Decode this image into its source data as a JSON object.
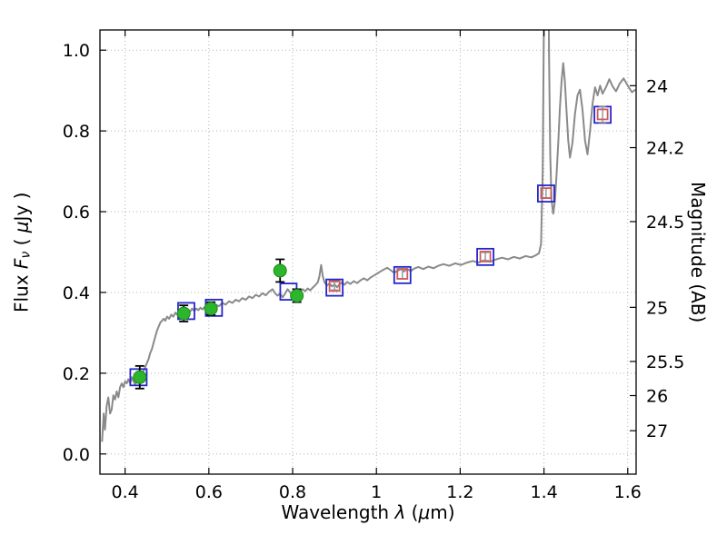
{
  "chart_data": {
    "type": "line",
    "title": "",
    "xlabel_parts": [
      "Wavelength  ",
      "λ",
      " (",
      "μ",
      "m)"
    ],
    "ylabel_parts": [
      "Flux  ",
      "F",
      "ν",
      "  ( ",
      "μ",
      "Jy )"
    ],
    "y2label": "Magnitude (AB)",
    "xlim": [
      0.34,
      1.62
    ],
    "ylim": [
      -0.05,
      1.05
    ],
    "xticks": [
      0.4,
      0.6,
      0.8,
      1.0,
      1.2,
      1.4,
      1.6
    ],
    "xtick_labels": [
      "0.4",
      "0.6",
      "0.8",
      "1",
      "1.2",
      "1.4",
      "1.6"
    ],
    "yticks": [
      0.0,
      0.2,
      0.4,
      0.6,
      0.8,
      1.0
    ],
    "ytick_labels": [
      "0.0",
      "0.2",
      "0.4",
      "0.6",
      "0.8",
      "1.0"
    ],
    "y2ticks": [
      24,
      24.2,
      24.5,
      25,
      25.5,
      26,
      27
    ],
    "y2tick_labels": [
      "24",
      "24.2",
      "24.5",
      "25",
      "25.5",
      "26",
      "27"
    ],
    "mag_zeropoint": 23.9,
    "grid": {
      "on": true,
      "color": "#b3b3b3"
    },
    "colors": {
      "frame": "#000000",
      "spectrum": "#8a8a8a",
      "observed": "#2db52d",
      "observed_edge": "#1a8a1a",
      "observed_err": "#000000",
      "synthetic_blue": "#2525cc",
      "model_red": "#cc5c5c",
      "model_err": "#999999"
    },
    "spectrum": [
      [
        0.345,
        0.03
      ],
      [
        0.349,
        0.1
      ],
      [
        0.352,
        0.06
      ],
      [
        0.356,
        0.12
      ],
      [
        0.36,
        0.14
      ],
      [
        0.364,
        0.1
      ],
      [
        0.368,
        0.11
      ],
      [
        0.372,
        0.145
      ],
      [
        0.376,
        0.135
      ],
      [
        0.38,
        0.155
      ],
      [
        0.384,
        0.14
      ],
      [
        0.388,
        0.165
      ],
      [
        0.392,
        0.175
      ],
      [
        0.396,
        0.165
      ],
      [
        0.4,
        0.18
      ],
      [
        0.404,
        0.175
      ],
      [
        0.408,
        0.185
      ],
      [
        0.412,
        0.175
      ],
      [
        0.416,
        0.19
      ],
      [
        0.42,
        0.18
      ],
      [
        0.424,
        0.172
      ],
      [
        0.428,
        0.18
      ],
      [
        0.432,
        0.19
      ],
      [
        0.436,
        0.2
      ],
      [
        0.44,
        0.19
      ],
      [
        0.444,
        0.205
      ],
      [
        0.448,
        0.215
      ],
      [
        0.452,
        0.225
      ],
      [
        0.456,
        0.235
      ],
      [
        0.46,
        0.25
      ],
      [
        0.464,
        0.26
      ],
      [
        0.468,
        0.275
      ],
      [
        0.472,
        0.29
      ],
      [
        0.476,
        0.305
      ],
      [
        0.48,
        0.315
      ],
      [
        0.484,
        0.325
      ],
      [
        0.488,
        0.33
      ],
      [
        0.492,
        0.335
      ],
      [
        0.496,
        0.33
      ],
      [
        0.5,
        0.34
      ],
      [
        0.505,
        0.335
      ],
      [
        0.51,
        0.345
      ],
      [
        0.515,
        0.34
      ],
      [
        0.52,
        0.35
      ],
      [
        0.525,
        0.344
      ],
      [
        0.53,
        0.352
      ],
      [
        0.535,
        0.348
      ],
      [
        0.54,
        0.355
      ],
      [
        0.545,
        0.35
      ],
      [
        0.55,
        0.358
      ],
      [
        0.555,
        0.352
      ],
      [
        0.56,
        0.36
      ],
      [
        0.565,
        0.354
      ],
      [
        0.57,
        0.36
      ],
      [
        0.575,
        0.356
      ],
      [
        0.58,
        0.362
      ],
      [
        0.585,
        0.358
      ],
      [
        0.59,
        0.364
      ],
      [
        0.595,
        0.36
      ],
      [
        0.6,
        0.365
      ],
      [
        0.608,
        0.362
      ],
      [
        0.616,
        0.37
      ],
      [
        0.624,
        0.366
      ],
      [
        0.632,
        0.374
      ],
      [
        0.64,
        0.37
      ],
      [
        0.648,
        0.378
      ],
      [
        0.656,
        0.374
      ],
      [
        0.664,
        0.382
      ],
      [
        0.672,
        0.378
      ],
      [
        0.68,
        0.386
      ],
      [
        0.688,
        0.382
      ],
      [
        0.696,
        0.39
      ],
      [
        0.704,
        0.386
      ],
      [
        0.712,
        0.394
      ],
      [
        0.72,
        0.39
      ],
      [
        0.728,
        0.398
      ],
      [
        0.736,
        0.393
      ],
      [
        0.744,
        0.402
      ],
      [
        0.752,
        0.408
      ],
      [
        0.758,
        0.398
      ],
      [
        0.764,
        0.392
      ],
      [
        0.77,
        0.397
      ],
      [
        0.776,
        0.388
      ],
      [
        0.782,
        0.397
      ],
      [
        0.788,
        0.408
      ],
      [
        0.794,
        0.4
      ],
      [
        0.8,
        0.394
      ],
      [
        0.806,
        0.4
      ],
      [
        0.812,
        0.395
      ],
      [
        0.818,
        0.402
      ],
      [
        0.824,
        0.408
      ],
      [
        0.83,
        0.403
      ],
      [
        0.836,
        0.41
      ],
      [
        0.842,
        0.405
      ],
      [
        0.848,
        0.412
      ],
      [
        0.854,
        0.418
      ],
      [
        0.86,
        0.425
      ],
      [
        0.864,
        0.44
      ],
      [
        0.868,
        0.468
      ],
      [
        0.872,
        0.44
      ],
      [
        0.876,
        0.425
      ],
      [
        0.882,
        0.417
      ],
      [
        0.888,
        0.422
      ],
      [
        0.894,
        0.415
      ],
      [
        0.9,
        0.42
      ],
      [
        0.906,
        0.413
      ],
      [
        0.912,
        0.42
      ],
      [
        0.918,
        0.425
      ],
      [
        0.924,
        0.419
      ],
      [
        0.93,
        0.426
      ],
      [
        0.938,
        0.421
      ],
      [
        0.946,
        0.428
      ],
      [
        0.954,
        0.423
      ],
      [
        0.962,
        0.43
      ],
      [
        0.97,
        0.435
      ],
      [
        0.978,
        0.43
      ],
      [
        0.986,
        0.437
      ],
      [
        0.994,
        0.442
      ],
      [
        1.002,
        0.447
      ],
      [
        1.01,
        0.452
      ],
      [
        1.018,
        0.457
      ],
      [
        1.026,
        0.461
      ],
      [
        1.034,
        0.455
      ],
      [
        1.042,
        0.449
      ],
      [
        1.05,
        0.453
      ],
      [
        1.058,
        0.458
      ],
      [
        1.066,
        0.452
      ],
      [
        1.074,
        0.458
      ],
      [
        1.082,
        0.453
      ],
      [
        1.09,
        0.459
      ],
      [
        1.1,
        0.463
      ],
      [
        1.112,
        0.458
      ],
      [
        1.124,
        0.464
      ],
      [
        1.136,
        0.46
      ],
      [
        1.148,
        0.466
      ],
      [
        1.16,
        0.47
      ],
      [
        1.174,
        0.466
      ],
      [
        1.188,
        0.472
      ],
      [
        1.202,
        0.468
      ],
      [
        1.216,
        0.474
      ],
      [
        1.23,
        0.478
      ],
      [
        1.244,
        0.474
      ],
      [
        1.258,
        0.48
      ],
      [
        1.272,
        0.476
      ],
      [
        1.286,
        0.482
      ],
      [
        1.3,
        0.486
      ],
      [
        1.314,
        0.482
      ],
      [
        1.328,
        0.488
      ],
      [
        1.342,
        0.484
      ],
      [
        1.356,
        0.49
      ],
      [
        1.37,
        0.487
      ],
      [
        1.38,
        0.492
      ],
      [
        1.388,
        0.497
      ],
      [
        1.393,
        0.52
      ],
      [
        1.397,
        0.7
      ],
      [
        1.4,
        1.1
      ],
      [
        1.403,
        1.6
      ],
      [
        1.406,
        1.2
      ],
      [
        1.409,
        1.62
      ],
      [
        1.412,
        1.0
      ],
      [
        1.415,
        0.74
      ],
      [
        1.418,
        0.63
      ],
      [
        1.422,
        0.595
      ],
      [
        1.426,
        0.625
      ],
      [
        1.43,
        0.69
      ],
      [
        1.434,
        0.77
      ],
      [
        1.438,
        0.856
      ],
      [
        1.442,
        0.925
      ],
      [
        1.446,
        0.968
      ],
      [
        1.45,
        0.922
      ],
      [
        1.454,
        0.846
      ],
      [
        1.458,
        0.776
      ],
      [
        1.462,
        0.734
      ],
      [
        1.468,
        0.77
      ],
      [
        1.474,
        0.842
      ],
      [
        1.48,
        0.888
      ],
      [
        1.486,
        0.902
      ],
      [
        1.492,
        0.852
      ],
      [
        1.498,
        0.776
      ],
      [
        1.504,
        0.742
      ],
      [
        1.51,
        0.8
      ],
      [
        1.516,
        0.868
      ],
      [
        1.522,
        0.908
      ],
      [
        1.528,
        0.888
      ],
      [
        1.534,
        0.912
      ],
      [
        1.54,
        0.892
      ],
      [
        1.548,
        0.908
      ],
      [
        1.556,
        0.928
      ],
      [
        1.564,
        0.91
      ],
      [
        1.572,
        0.898
      ],
      [
        1.58,
        0.916
      ],
      [
        1.59,
        0.93
      ],
      [
        1.6,
        0.912
      ],
      [
        1.61,
        0.896
      ],
      [
        1.618,
        0.902
      ]
    ],
    "observed_points": [
      [
        0.435,
        0.19,
        0.028
      ],
      [
        0.54,
        0.348,
        0.02
      ],
      [
        0.605,
        0.36,
        0.016
      ],
      [
        0.77,
        0.454,
        0.028
      ],
      [
        0.81,
        0.392,
        0.016
      ]
    ],
    "blue_squares": [
      [
        0.432,
        0.19
      ],
      [
        0.546,
        0.354
      ],
      [
        0.612,
        0.362
      ],
      [
        0.79,
        0.402
      ],
      [
        0.9,
        0.412
      ],
      [
        1.062,
        0.443
      ],
      [
        1.26,
        0.488
      ],
      [
        1.405,
        0.645
      ],
      [
        1.54,
        0.84
      ]
    ],
    "red_squares": [
      [
        0.9,
        0.416,
        0.01
      ],
      [
        1.062,
        0.446,
        0.012
      ],
      [
        1.26,
        0.489,
        0.01
      ],
      [
        1.405,
        0.646,
        0.012
      ],
      [
        1.54,
        0.841,
        0.02
      ]
    ]
  }
}
